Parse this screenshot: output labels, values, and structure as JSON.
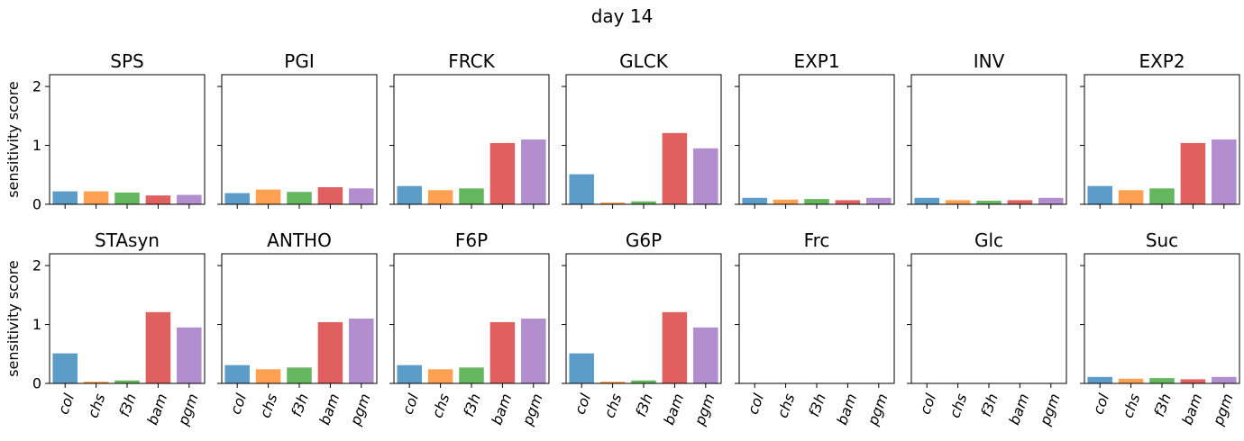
{
  "figure": {
    "title": "day 14"
  },
  "chart_data": {
    "type": "bar",
    "title": "day 14",
    "categories": [
      "col",
      "chs",
      "f3h",
      "bam",
      "pgm"
    ],
    "colors": [
      "#5799c7",
      "#ff9e4a",
      "#60b55a",
      "#df5a5a",
      "#b08acc"
    ],
    "ylabel": "sensitivity score",
    "ylim": [
      0,
      2.2
    ],
    "yticks": [
      0,
      1,
      2
    ],
    "panels": [
      {
        "title": "SPS",
        "values": [
          0.22,
          0.22,
          0.2,
          0.15,
          0.16
        ]
      },
      {
        "title": "PGI",
        "values": [
          0.19,
          0.25,
          0.21,
          0.29,
          0.27
        ]
      },
      {
        "title": "FRCK",
        "values": [
          0.31,
          0.24,
          0.27,
          1.04,
          1.1
        ]
      },
      {
        "title": "GLCK",
        "values": [
          0.51,
          0.03,
          0.05,
          1.21,
          0.95
        ]
      },
      {
        "title": "EXP1",
        "values": [
          0.11,
          0.08,
          0.09,
          0.07,
          0.11
        ]
      },
      {
        "title": "INV",
        "values": [
          0.11,
          0.07,
          0.06,
          0.07,
          0.11
        ]
      },
      {
        "title": "EXP2",
        "values": [
          0.31,
          0.24,
          0.27,
          1.04,
          1.1
        ]
      },
      {
        "title": "STAsyn",
        "values": [
          0.51,
          0.03,
          0.05,
          1.21,
          0.95
        ]
      },
      {
        "title": "ANTHO",
        "values": [
          0.31,
          0.24,
          0.27,
          1.04,
          1.1
        ]
      },
      {
        "title": "F6P",
        "values": [
          0.31,
          0.24,
          0.27,
          1.04,
          1.1
        ]
      },
      {
        "title": "G6P",
        "values": [
          0.51,
          0.03,
          0.05,
          1.21,
          0.95
        ]
      },
      {
        "title": "Frc",
        "values": [
          0,
          0,
          0,
          0,
          0
        ]
      },
      {
        "title": "Glc",
        "values": [
          0,
          0,
          0,
          0,
          0
        ]
      },
      {
        "title": "Suc",
        "values": [
          0.11,
          0.08,
          0.09,
          0.07,
          0.11
        ]
      }
    ]
  }
}
